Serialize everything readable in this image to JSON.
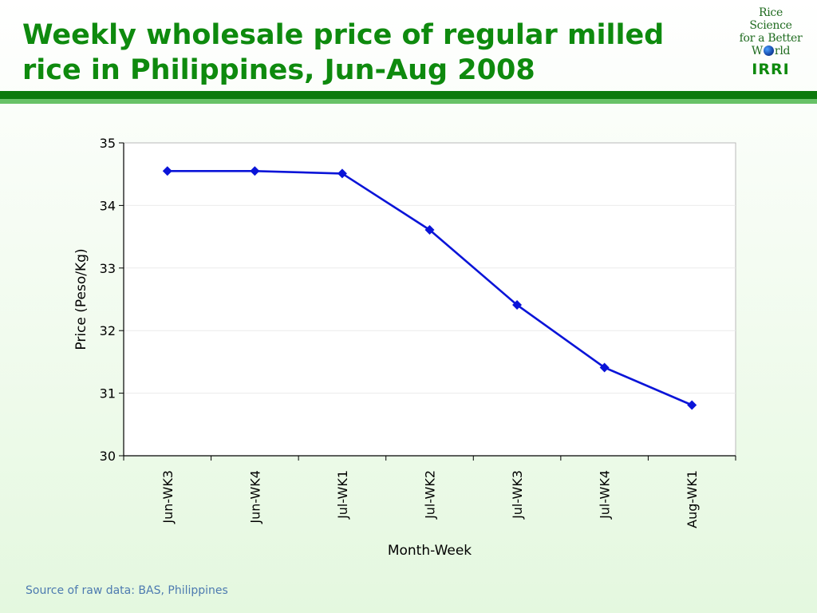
{
  "header": {
    "title_line1": "Weekly wholesale price of regular milled",
    "title_line2": "rice in Philippines, Jun-Aug 2008"
  },
  "logo": {
    "line1": "Rice",
    "line2": "Science",
    "line3": "for a Better",
    "line4_pre": "W",
    "line4_post": "rld",
    "org": "IRRI",
    "icon": "globe-icon"
  },
  "footer": {
    "source": "Source of raw data: BAS, Philippines"
  },
  "colors": {
    "title": "#0e8a0e",
    "series": "#0a14d8",
    "band_dark": "#0c7a0c",
    "band_light": "#67c267",
    "source_text": "#4d7ab0"
  },
  "chart_data": {
    "type": "line",
    "title": "",
    "xlabel": "Month-Week",
    "ylabel": "Price (Peso/Kg)",
    "categories": [
      "Jun-WK3",
      "Jun-WK4",
      "Jul-WK1",
      "Jul-WK2",
      "Jul-WK3",
      "Jul-WK4",
      "Aug-WK1"
    ],
    "series": [
      {
        "values": [
          34.55,
          34.55,
          34.51,
          33.61,
          32.41,
          31.41,
          30.81
        ]
      }
    ],
    "ylim": [
      30,
      35
    ],
    "yticks": [
      "30",
      "31",
      "32",
      "33",
      "34",
      "35"
    ],
    "grid": true,
    "legend": "none"
  }
}
